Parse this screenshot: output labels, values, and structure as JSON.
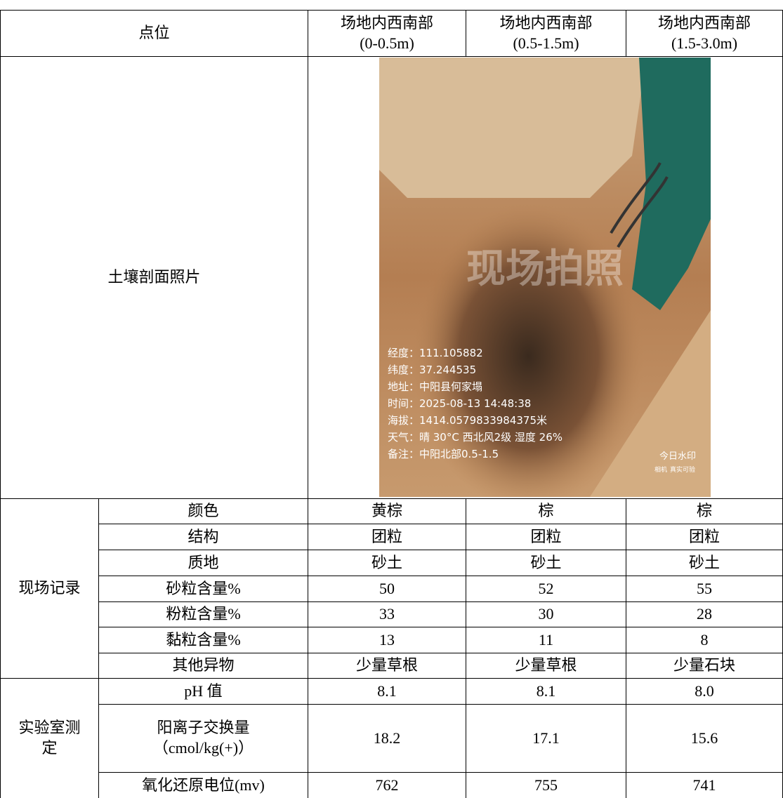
{
  "header": {
    "label": "点位",
    "columns": [
      {
        "name": "场地内西南部",
        "depth": "(0-0.5m)"
      },
      {
        "name": "场地内西南部",
        "depth": "(0.5-1.5m)"
      },
      {
        "name": "场地内西南部",
        "depth": "(1.5-3.0m)"
      }
    ]
  },
  "photo": {
    "label": "土壤剖面照片",
    "watermark": "现场拍照",
    "overlay": [
      "经度：111.105882",
      "纬度：37.244535",
      "地址：中阳县何家塌",
      "时间：2025-08-13 14:48:38",
      "海拔：1414.0579833984375米",
      "天气：晴 30°C 西北风2级 湿度 26%",
      "备注：中阳北部0.5-1.5"
    ],
    "stamp": [
      "今日水印",
      "相机",
      "真实可验"
    ]
  },
  "field": {
    "label": "现场记录",
    "rows": [
      {
        "label": "颜色",
        "values": [
          "黄棕",
          "棕",
          "棕"
        ]
      },
      {
        "label": "结构",
        "values": [
          "团粒",
          "团粒",
          "团粒"
        ]
      },
      {
        "label": "质地",
        "values": [
          "砂土",
          "砂土",
          "砂土"
        ]
      },
      {
        "label": "砂粒含量%",
        "values": [
          "50",
          "52",
          "55"
        ]
      },
      {
        "label": "粉粒含量%",
        "values": [
          "33",
          "30",
          "28"
        ]
      },
      {
        "label": "黏粒含量%",
        "values": [
          "13",
          "11",
          "8"
        ]
      },
      {
        "label": "其他异物",
        "values": [
          "少量草根",
          "少量草根",
          "少量石块"
        ]
      }
    ]
  },
  "lab": {
    "label": "实验室测定",
    "rows": [
      {
        "label": [
          "pH 值"
        ],
        "values": [
          "8.1",
          "8.1",
          "8.0"
        ]
      },
      {
        "label": [
          "阳离子交换量",
          "（cmol/kg(+)）"
        ],
        "values": [
          "18.2",
          "17.1",
          "15.6"
        ]
      },
      {
        "label": [
          "氧化还原电位(mv)"
        ],
        "values": [
          "762",
          "755",
          "741"
        ]
      }
    ]
  }
}
